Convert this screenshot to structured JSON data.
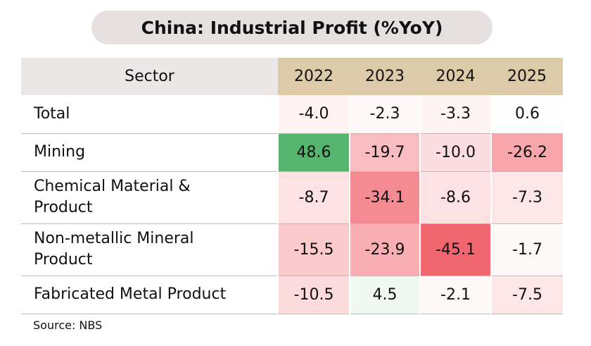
{
  "title": "China: Industrial Profit (%YoY)",
  "table": {
    "header": [
      "Sector",
      "2022",
      "2023",
      "2024",
      "2025"
    ],
    "rows": [
      [
        "Total",
        "-4.0",
        "-2.3",
        "-3.3",
        "0.6"
      ],
      [
        "Mining",
        "48.6",
        "-19.7",
        "-10.0",
        "-26.2"
      ],
      [
        "Chemical Material &\nProduct",
        "-8.7",
        "-34.1",
        "-8.6",
        "-7.3"
      ],
      [
        "Non-metallic Mineral\nProduct",
        "-15.5",
        "-23.9",
        "-45.1",
        "-1.7"
      ],
      [
        "Fabricated Metal Product",
        "-10.5",
        "4.5",
        "-2.1",
        "-7.5"
      ]
    ]
  },
  "source": "Source: NBS"
}
